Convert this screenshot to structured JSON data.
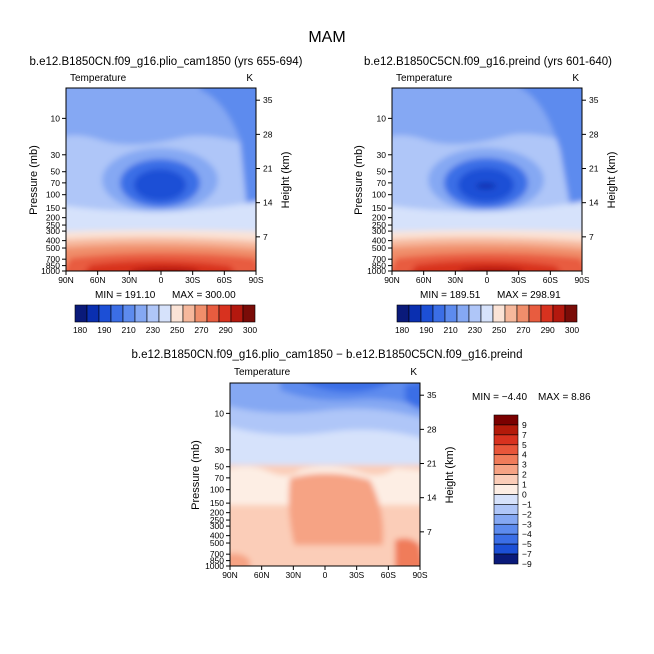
{
  "figure": {
    "title": "MAM"
  },
  "chart_data": [
    {
      "type": "heatmap",
      "title": "b.e12.B1850CN.f09_g16.plio_cam1850 (yrs 655-694)",
      "subtitle": "Temperature",
      "units": "K",
      "ylabel": "Pressure (mb)",
      "y2label": "Height (km)",
      "xticks": [
        "90N",
        "60N",
        "30N",
        "0",
        "30S",
        "60S",
        "90S"
      ],
      "yticks": [
        10,
        30,
        50,
        70,
        100,
        150,
        200,
        250,
        300,
        400,
        500,
        700,
        850,
        1000
      ],
      "y2ticks": [
        35,
        28,
        21,
        14,
        7
      ],
      "min_label": "MIN = 191.10",
      "max_label": "MAX = 300.00",
      "min": 191.1,
      "max": 300.0,
      "colorbar": {
        "orientation": "horizontal",
        "levels": [
          180,
          190,
          200,
          210,
          220,
          230,
          240,
          250,
          260,
          270,
          280,
          290,
          300
        ],
        "labels": [
          "180",
          "190",
          "210",
          "230",
          "250",
          "270",
          "290",
          "300"
        ]
      }
    },
    {
      "type": "heatmap",
      "title": "b.e12.B1850C5CN.f09_g16.preind (yrs 601-640)",
      "subtitle": "Temperature",
      "units": "K",
      "ylabel": "Pressure (mb)",
      "y2label": "Height (km)",
      "xticks": [
        "90N",
        "60N",
        "30N",
        "0",
        "30S",
        "60S",
        "90S"
      ],
      "yticks": [
        10,
        30,
        50,
        70,
        100,
        150,
        200,
        250,
        300,
        400,
        500,
        700,
        850,
        1000
      ],
      "y2ticks": [
        35,
        28,
        21,
        14,
        7
      ],
      "min_label": "MIN = 189.51",
      "max_label": "MAX = 298.91",
      "min": 189.51,
      "max": 298.91,
      "colorbar": {
        "orientation": "horizontal",
        "levels": [
          180,
          190,
          200,
          210,
          220,
          230,
          240,
          250,
          260,
          270,
          280,
          290,
          300
        ],
        "labels": [
          "180",
          "190",
          "210",
          "230",
          "250",
          "270",
          "290",
          "300"
        ]
      }
    },
    {
      "type": "heatmap",
      "title": "b.e12.B1850CN.f09_g16.plio_cam1850 − b.e12.B1850C5CN.f09_g16.preind",
      "subtitle": "Temperature",
      "units": "K",
      "ylabel": "Pressure (mb)",
      "y2label": "Height (km)",
      "xticks": [
        "90N",
        "60N",
        "30N",
        "0",
        "30S",
        "60S",
        "90S"
      ],
      "yticks": [
        10,
        30,
        50,
        70,
        100,
        150,
        200,
        250,
        300,
        400,
        500,
        700,
        850,
        1000
      ],
      "y2ticks": [
        35,
        28,
        21,
        14,
        7
      ],
      "min_label": "MIN = −4.40",
      "max_label": "MAX =   8.86",
      "min": -4.4,
      "max": 8.86,
      "colorbar": {
        "orientation": "vertical",
        "levels": [
          9,
          7,
          5,
          4,
          3,
          2,
          1,
          0,
          -1,
          -2,
          -3,
          -4,
          -5,
          -7,
          -9
        ],
        "labels": [
          "9",
          "7",
          "5",
          "4",
          "3",
          "2",
          "1",
          "0",
          "−1",
          "−2",
          "−3",
          "−4",
          "−5",
          "−7",
          "−9"
        ]
      }
    }
  ],
  "colors": {
    "abs_palette": [
      "#0a1a7a",
      "#0a2fb0",
      "#1c4fd6",
      "#3b6ee6",
      "#5d8bee",
      "#85a8f3",
      "#afc6f8",
      "#d6e2fb",
      "#fbe3d6",
      "#f6b89c",
      "#f08e6b",
      "#e85c3f",
      "#d8321f",
      "#b3180e",
      "#7a0c08"
    ],
    "diff_palette": [
      "#7a0000",
      "#b31a0a",
      "#d8321f",
      "#e8563a",
      "#f07c5a",
      "#f6a384",
      "#fbcdb8",
      "#fdeee4",
      "#d6e2fb",
      "#afc6f8",
      "#85a8f3",
      "#5d8bee",
      "#3b6ee6",
      "#1c4fd6",
      "#0a1a7a"
    ]
  }
}
